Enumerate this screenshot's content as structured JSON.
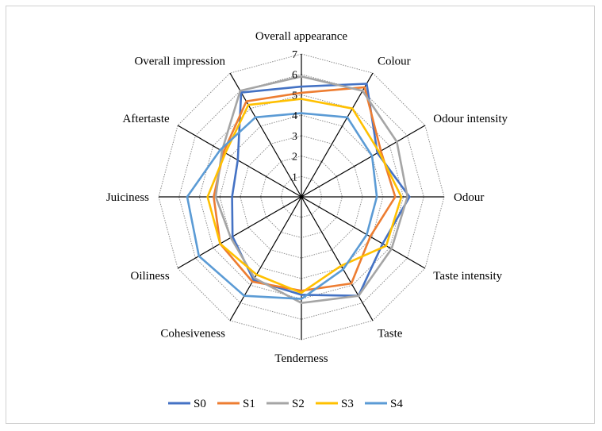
{
  "chart_data": {
    "type": "radar",
    "title": "",
    "categories": [
      "Overall appearance",
      "Colour",
      "Odour intensity",
      "Odour",
      "Taste intensity",
      "Taste",
      "Tenderness",
      "Cohesiveness",
      "Oiliness",
      "Juiciness",
      "Aftertaste",
      "Overall impression"
    ],
    "rlim": [
      0,
      7
    ],
    "ticks": [
      "1",
      "2",
      "3",
      "4",
      "5",
      "6",
      "7"
    ],
    "series": [
      {
        "name": "S0",
        "color": "#4472C4",
        "values": [
          5.4,
          6.4,
          4.3,
          5.3,
          4.6,
          5.6,
          4.8,
          4.7,
          3.9,
          3.4,
          3.6,
          5.9
        ]
      },
      {
        "name": "S1",
        "color": "#ED7D31",
        "values": [
          5.1,
          6.2,
          4.5,
          4.6,
          3.9,
          4.9,
          4.6,
          4.8,
          4.6,
          4.3,
          4.4,
          5.4
        ]
      },
      {
        "name": "S2",
        "color": "#A5A5A5",
        "values": [
          5.9,
          6.0,
          5.4,
          5.2,
          5.1,
          5.6,
          5.2,
          4.6,
          4.0,
          4.2,
          4.5,
          6.0
        ]
      },
      {
        "name": "S3",
        "color": "#FFC000",
        "values": [
          4.8,
          5.0,
          4.4,
          4.9,
          4.8,
          3.9,
          4.7,
          4.4,
          4.6,
          4.6,
          4.3,
          5.2
        ]
      },
      {
        "name": "S4",
        "color": "#5B9BD5",
        "values": [
          4.1,
          4.5,
          4.0,
          3.7,
          3.7,
          4.1,
          5.0,
          5.6,
          5.8,
          5.6,
          4.6,
          4.5
        ]
      }
    ]
  }
}
